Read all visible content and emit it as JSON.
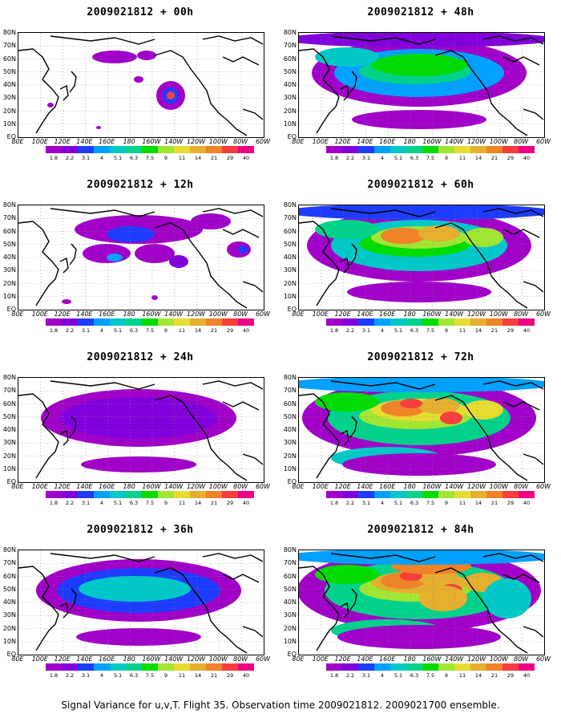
{
  "caption": "Signal Variance for u,v,T. Flight 35. Observation time 2009021812. 2009021700 ensemble.",
  "lat_labels": [
    "80N",
    "70N",
    "60N",
    "50N",
    "40N",
    "30N",
    "20N",
    "10N",
    "EQ"
  ],
  "lon_labels": [
    "80E",
    "100E",
    "120E",
    "140E",
    "160E",
    "180",
    "160W",
    "140W",
    "120W",
    "100W",
    "80W",
    "60W"
  ],
  "colorbar": {
    "levels": [
      "1.8",
      "2.2",
      "3.1",
      "4",
      "5.1",
      "6.3",
      "7.5",
      "9",
      "11",
      "14",
      "21",
      "29",
      "40"
    ],
    "colors": [
      "#a000c8",
      "#8200dc",
      "#1e3cff",
      "#00a0ff",
      "#00c8c8",
      "#00d28c",
      "#00dc00",
      "#a0e632",
      "#e6dc32",
      "#e6af2d",
      "#f08228",
      "#fa3c3c",
      "#f00082"
    ]
  },
  "panels": [
    {
      "title": "2009021812 + 00h",
      "level": 0
    },
    {
      "title": "2009021812 + 48h",
      "level": 4
    },
    {
      "title": "2009021812 + 12h",
      "level": 1
    },
    {
      "title": "2009021812 + 60h",
      "level": 5
    },
    {
      "title": "2009021812 + 24h",
      "level": 2
    },
    {
      "title": "2009021812 + 72h",
      "level": 6
    },
    {
      "title": "2009021812 + 36h",
      "level": 3
    },
    {
      "title": "2009021812 + 84h",
      "level": 7
    }
  ]
}
